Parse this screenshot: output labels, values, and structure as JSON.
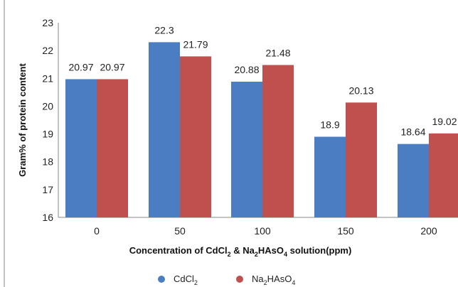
{
  "chart_data": {
    "type": "bar",
    "categories": [
      "0",
      "50",
      "100",
      "150",
      "200"
    ],
    "series": [
      {
        "name": "CdCl2",
        "name_main": "CdCl",
        "name_sub": "2",
        "name_tail": "",
        "color": "#4a7dc2",
        "values": [
          20.97,
          22.3,
          20.88,
          18.9,
          18.64
        ],
        "labels": [
          "20.97",
          "22.3",
          "20.88",
          "18.9",
          "18.64"
        ]
      },
      {
        "name": "Na2HAsO4",
        "name_main": "Na",
        "name_sub": "2",
        "name_tail": "HAsO",
        "name_sub2": "4",
        "color": "#c0504d",
        "values": [
          20.97,
          21.79,
          21.48,
          20.13,
          19.02
        ],
        "labels": [
          "20.97",
          "21.79",
          "21.48",
          "20.13",
          "19.02"
        ]
      }
    ],
    "ylabel": "Gram% of protein content",
    "xlabel": {
      "p1": "Concentration of CdCl",
      "s1": "2",
      "p2": " & Na",
      "s2": "2",
      "p3": "HAsO",
      "s3": "4",
      "p4": " solution(ppm)"
    },
    "ylim": [
      16,
      23
    ],
    "yticks": [
      "16",
      "17",
      "18",
      "19",
      "20",
      "21",
      "22",
      "23"
    ],
    "grid": false,
    "legend_position": "bottom"
  }
}
